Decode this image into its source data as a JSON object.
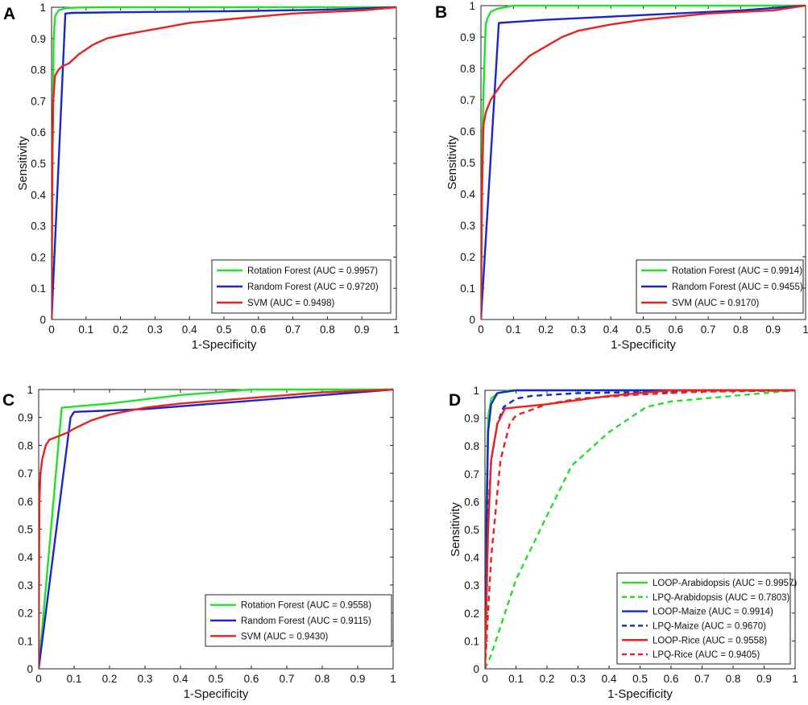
{
  "figure": {
    "panel_count": 4
  },
  "chart_data": [
    {
      "panel": "A",
      "type": "line",
      "title": "",
      "xlabel": "1-Specificity",
      "ylabel": "Sensitivity",
      "xlim": [
        0,
        1
      ],
      "ylim": [
        0,
        1
      ],
      "xticks": [
        "0",
        "0.1",
        "0.2",
        "0.3",
        "0.4",
        "0.5",
        "0.6",
        "0.7",
        "0.8",
        "0.9",
        "1"
      ],
      "yticks": [
        "0",
        "0.1",
        "0.2",
        "0.3",
        "0.4",
        "0.5",
        "0.6",
        "0.7",
        "0.8",
        "0.9",
        "1"
      ],
      "legend_position": "bottom-right",
      "series": [
        {
          "name": "Rotation Forest (AUC = 0.9957)",
          "color": "#22e02a",
          "dash": false,
          "x": [
            0,
            0.003,
            0.006,
            0.01,
            0.02,
            0.04,
            0.07,
            0.15,
            0.4,
            1
          ],
          "y": [
            0,
            0.55,
            0.9,
            0.97,
            0.99,
            0.997,
            0.999,
            1,
            1,
            1
          ]
        },
        {
          "name": "Random Forest (AUC = 0.9720)",
          "color": "#1a27c8",
          "dash": false,
          "x": [
            0,
            0.04,
            0.06,
            0.2,
            0.5,
            0.8,
            1
          ],
          "y": [
            0,
            0.98,
            0.982,
            0.984,
            0.987,
            0.992,
            1
          ]
        },
        {
          "name": "SVM (AUC = 0.9498)",
          "color": "#e8231f",
          "dash": false,
          "x": [
            0,
            0.002,
            0.005,
            0.01,
            0.02,
            0.03,
            0.05,
            0.08,
            0.12,
            0.16,
            0.2,
            0.25,
            0.3,
            0.35,
            0.4,
            0.5,
            0.6,
            0.7,
            0.8,
            0.9,
            1
          ],
          "y": [
            0,
            0.5,
            0.7,
            0.78,
            0.8,
            0.81,
            0.82,
            0.85,
            0.88,
            0.9,
            0.91,
            0.92,
            0.93,
            0.94,
            0.95,
            0.96,
            0.97,
            0.98,
            0.985,
            0.99,
            1
          ]
        }
      ],
      "panel_label": "A"
    },
    {
      "panel": "B",
      "type": "line",
      "title": "",
      "xlabel": "1-Specificity",
      "ylabel": "Sensitivity",
      "xlim": [
        0,
        1
      ],
      "ylim": [
        0,
        1
      ],
      "xticks": [
        "0",
        "0.1",
        "0.2",
        "0.3",
        "0.4",
        "0.5",
        "0.6",
        "0.7",
        "0.8",
        "0.9",
        "1"
      ],
      "yticks": [
        "0",
        "0.1",
        "0.2",
        "0.3",
        "0.4",
        "0.5",
        "0.6",
        "0.7",
        "0.8",
        "0.9",
        "1"
      ],
      "legend_position": "bottom-right",
      "series": [
        {
          "name": "Rotation Forest (AUC = 0.9914)",
          "color": "#22e02a",
          "dash": false,
          "x": [
            0,
            0.005,
            0.01,
            0.015,
            0.02,
            0.03,
            0.05,
            0.1,
            0.3,
            1
          ],
          "y": [
            0,
            0.6,
            0.8,
            0.94,
            0.96,
            0.98,
            0.99,
            1,
            1,
            1
          ]
        },
        {
          "name": "Random Forest (AUC = 0.9455)",
          "color": "#1a27c8",
          "dash": false,
          "x": [
            0,
            0.055,
            0.2,
            0.5,
            0.8,
            1
          ],
          "y": [
            0,
            0.945,
            0.955,
            0.97,
            0.985,
            1
          ]
        },
        {
          "name": "SVM (AUC = 0.9170)",
          "color": "#e8231f",
          "dash": false,
          "x": [
            0,
            0.003,
            0.008,
            0.015,
            0.03,
            0.05,
            0.07,
            0.1,
            0.13,
            0.15,
            0.2,
            0.25,
            0.3,
            0.4,
            0.5,
            0.6,
            0.7,
            0.8,
            0.9,
            1
          ],
          "y": [
            0,
            0.4,
            0.62,
            0.66,
            0.7,
            0.73,
            0.76,
            0.79,
            0.82,
            0.84,
            0.87,
            0.9,
            0.92,
            0.94,
            0.955,
            0.965,
            0.975,
            0.98,
            0.985,
            1
          ]
        }
      ],
      "panel_label": "B"
    },
    {
      "panel": "C",
      "type": "line",
      "title": "",
      "xlabel": "1-Specificity",
      "ylabel": "",
      "xlim": [
        0,
        1
      ],
      "ylim": [
        0,
        1
      ],
      "xticks": [
        "0",
        "0.1",
        "0.2",
        "0.3",
        "0.4",
        "0.5",
        "0.6",
        "0.7",
        "0.8",
        "0.9",
        "1"
      ],
      "yticks": [
        "0",
        "0.1",
        "0.2",
        "0.3",
        "0.4",
        "0.5",
        "0.6",
        "0.7",
        "0.8",
        "0.9",
        "1"
      ],
      "legend_position": "bottom-right",
      "series": [
        {
          "name": "Rotation Forest (AUC = 0.9558)",
          "color": "#22e02a",
          "dash": false,
          "x": [
            0,
            0.065,
            0.2,
            0.4,
            0.55,
            0.6,
            1
          ],
          "y": [
            0,
            0.935,
            0.95,
            0.98,
            0.995,
            1,
            1
          ]
        },
        {
          "name": "Random Forest (AUC = 0.9115)",
          "color": "#1a27c8",
          "dash": false,
          "x": [
            0,
            0.09,
            0.1,
            0.3,
            0.6,
            0.9,
            1
          ],
          "y": [
            0,
            0.9,
            0.92,
            0.93,
            0.96,
            0.99,
            1
          ]
        },
        {
          "name": "SVM (AUC = 0.9430)",
          "color": "#e8231f",
          "dash": false,
          "x": [
            0,
            0.002,
            0.005,
            0.01,
            0.02,
            0.03,
            0.05,
            0.08,
            0.1,
            0.15,
            0.2,
            0.3,
            0.4,
            0.5,
            0.6,
            0.7,
            0.8,
            0.9,
            1
          ],
          "y": [
            0,
            0.6,
            0.7,
            0.75,
            0.8,
            0.82,
            0.83,
            0.845,
            0.86,
            0.89,
            0.91,
            0.935,
            0.95,
            0.96,
            0.97,
            0.98,
            0.99,
            0.995,
            1
          ]
        }
      ],
      "panel_label": "C"
    },
    {
      "panel": "D",
      "type": "line",
      "title": "",
      "xlabel": "1-Specificity",
      "ylabel": "Sensitivity",
      "xlim": [
        0,
        1
      ],
      "ylim": [
        0,
        1
      ],
      "xticks": [
        "0",
        "0.1",
        "0.2",
        "0.3",
        "0.4",
        "0.5",
        "0.6",
        "0.7",
        "0.8",
        "0.9",
        "1"
      ],
      "yticks": [
        "0",
        "0.1",
        "0.2",
        "0.3",
        "0.4",
        "0.5",
        "0.6",
        "0.7",
        "0.8",
        "0.9",
        "1"
      ],
      "legend_position": "bottom-right",
      "series": [
        {
          "name": "LOOP-Arabidopsis (AUC = 0.9957)",
          "color": "#22e02a",
          "dash": false,
          "x": [
            0,
            0.005,
            0.01,
            0.02,
            0.04,
            0.08,
            0.2,
            1
          ],
          "y": [
            0,
            0.6,
            0.9,
            0.97,
            0.99,
            1,
            1,
            1
          ]
        },
        {
          "name": "LPQ-Arabidopsis (AUC = 0.7803)",
          "color": "#22e02a",
          "dash": true,
          "x": [
            0,
            0.02,
            0.1,
            0.2,
            0.28,
            0.4,
            0.52,
            0.6,
            0.8,
            1
          ],
          "y": [
            0,
            0.05,
            0.32,
            0.55,
            0.73,
            0.85,
            0.94,
            0.96,
            0.98,
            1
          ]
        },
        {
          "name": "LOOP-Maize (AUC = 0.9914)",
          "color": "#1a27c8",
          "dash": false,
          "x": [
            0,
            0.005,
            0.01,
            0.02,
            0.04,
            0.1,
            0.5,
            1
          ],
          "y": [
            0,
            0.5,
            0.85,
            0.95,
            0.99,
            1,
            1,
            1
          ]
        },
        {
          "name": "LPQ-Maize (AUC = 0.9670)",
          "color": "#1a27c8",
          "dash": true,
          "x": [
            0,
            0.01,
            0.02,
            0.04,
            0.06,
            0.1,
            0.15,
            0.3,
            0.6,
            1
          ],
          "y": [
            0,
            0.55,
            0.75,
            0.88,
            0.94,
            0.97,
            0.98,
            0.99,
            0.995,
            1
          ]
        },
        {
          "name": "LOOP-Rice (AUC = 0.9558)",
          "color": "#e8231f",
          "dash": false,
          "x": [
            0,
            0.01,
            0.02,
            0.04,
            0.065,
            0.2,
            0.4,
            0.55,
            0.6,
            1
          ],
          "y": [
            0,
            0.5,
            0.75,
            0.88,
            0.935,
            0.95,
            0.98,
            0.995,
            1,
            1
          ]
        },
        {
          "name": "LPQ-Rice (AUC = 0.9405)",
          "color": "#e8231f",
          "dash": true,
          "x": [
            0,
            0.02,
            0.05,
            0.08,
            0.1,
            0.2,
            0.3,
            0.5,
            0.7,
            1
          ],
          "y": [
            0,
            0.4,
            0.75,
            0.88,
            0.91,
            0.95,
            0.97,
            0.985,
            0.995,
            1
          ]
        }
      ],
      "panel_label": "D"
    }
  ]
}
